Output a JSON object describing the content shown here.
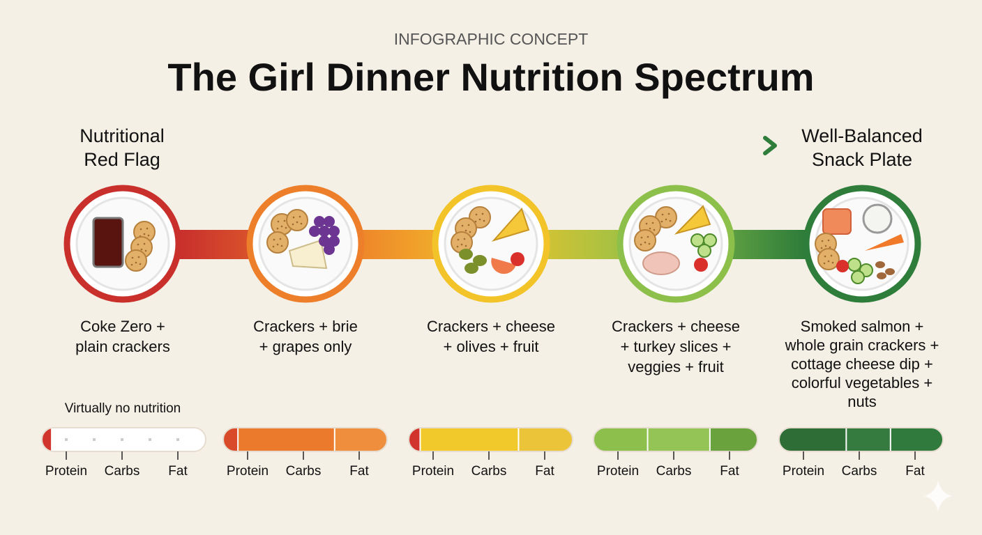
{
  "header": {
    "kicker": "INFOGRAPHIC CONCEPT",
    "title": "The Girl Dinner Nutrition Spectrum"
  },
  "spectrum": {
    "start_label": [
      "Nutritional",
      "Red Flag"
    ],
    "end_label": [
      "Well-Balanced",
      "Snack Plate"
    ]
  },
  "items": [
    {
      "description": [
        "Coke Zero +",
        "plain crackers"
      ],
      "note": "Virtually no nutrition",
      "bar_labels": [
        "Protein",
        "Carbs",
        "Fat"
      ]
    },
    {
      "description": [
        "Crackers + brie",
        "+ grapes only"
      ],
      "bar_labels": [
        "Protein",
        "Carbs",
        "Fat"
      ]
    },
    {
      "description": [
        "Crackers + cheese",
        "+ olives + fruit"
      ],
      "bar_labels": [
        "Protein",
        "Carbs",
        "Fat"
      ]
    },
    {
      "description": [
        "Crackers + cheese",
        "+ turkey slices +",
        "veggies + fruit"
      ],
      "bar_labels": [
        "Protein",
        "Carbs",
        "Fat"
      ]
    },
    {
      "description": [
        "Smoked salmon +",
        "whole grain crackers +",
        "cottage cheese dip +",
        "colorful vegetables +",
        "nuts"
      ],
      "bar_labels": [
        "Protein",
        "Carbs",
        "Fat"
      ]
    }
  ]
}
